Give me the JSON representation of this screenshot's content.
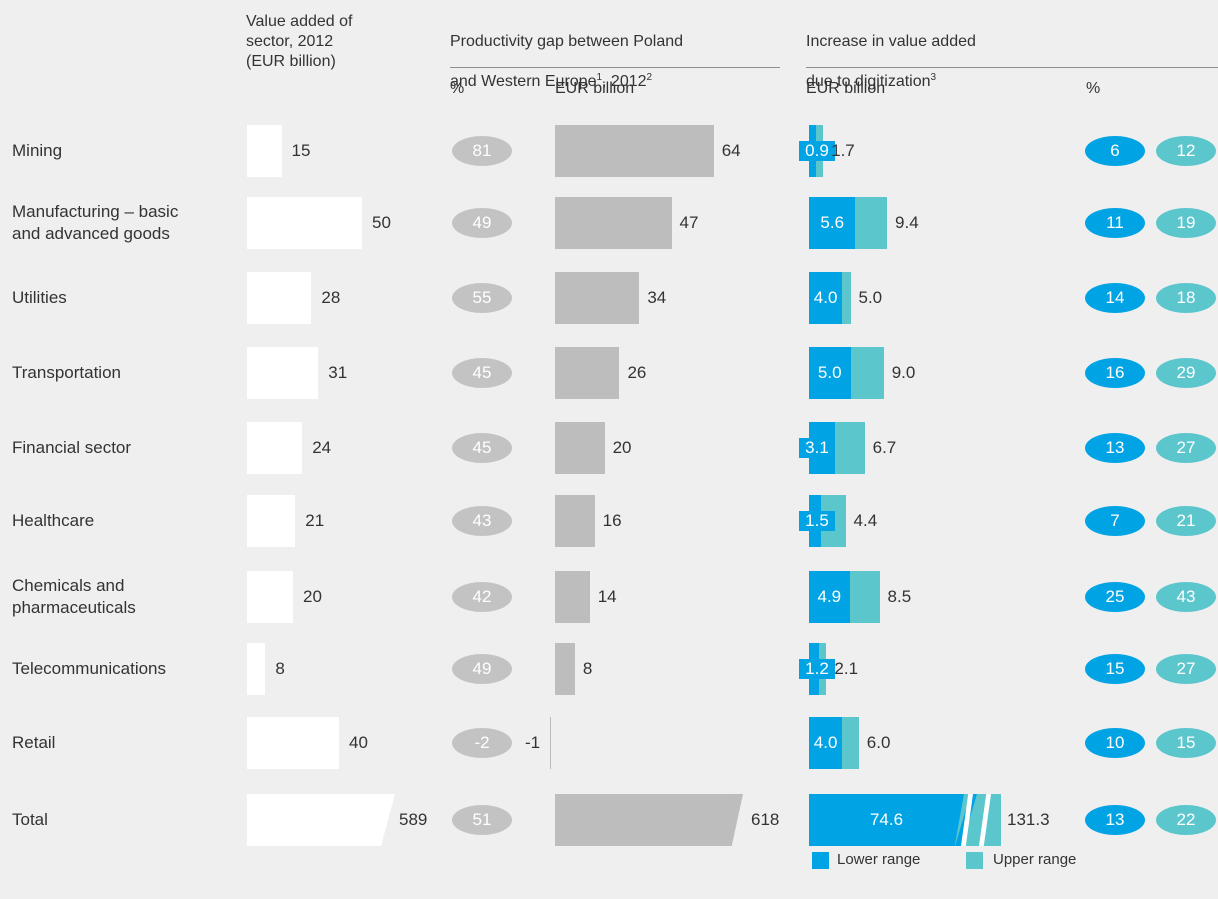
{
  "colors": {
    "background": "#efefef",
    "value_bar": "#ffffff",
    "gap_bar": "#bdbdbd",
    "gap_pill": "#c3c3c3",
    "lower": "#00a4e4",
    "upper": "#5cc6cd"
  },
  "headers": {
    "value_added": "Value added of\nsector, 2012\n(EUR billion)",
    "gap_line1": "Productivity gap between Poland",
    "gap_line2_text": "and Western Europe",
    "gap_sup1": "1",
    "gap_mid": ", 2012",
    "gap_sup2": "2",
    "increase_line1": "Increase in value added",
    "increase_line2_text": "due to digitization",
    "increase_sup": "3",
    "gap_pct": "%",
    "gap_eur": "EUR billion",
    "inc_eur": "EUR billion",
    "inc_pct": "%"
  },
  "legend": {
    "lower": "Lower range",
    "upper": "Upper range"
  },
  "chart_data": {
    "type": "bar",
    "categories": [
      "Mining",
      "Manufacturing – basic\nand advanced goods",
      "Utilities",
      "Transportation",
      "Financial sector",
      "Healthcare",
      "Chemicals and\npharmaceuticals",
      "Telecommunications",
      "Retail",
      "Total"
    ],
    "series": [
      {
        "name": "Value added of sector, 2012 (EUR billion)",
        "values": [
          15,
          50,
          28,
          31,
          24,
          21,
          20,
          8,
          40,
          589
        ]
      },
      {
        "name": "Productivity gap %",
        "values": [
          81,
          49,
          55,
          45,
          45,
          43,
          42,
          49,
          -2,
          51
        ]
      },
      {
        "name": "Productivity gap EUR billion",
        "values": [
          64,
          47,
          34,
          26,
          20,
          16,
          14,
          8,
          -1,
          618
        ]
      },
      {
        "name": "Lower range",
        "values": [
          0.9,
          5.6,
          4.0,
          5.0,
          3.1,
          1.5,
          4.9,
          1.2,
          4.0,
          74.6
        ]
      },
      {
        "name": "Upper range",
        "values": [
          1.7,
          9.4,
          5.0,
          9.0,
          6.7,
          4.4,
          8.5,
          2.1,
          6.0,
          131.3
        ]
      },
      {
        "name": "Lower range %",
        "values": [
          6,
          11,
          14,
          16,
          13,
          7,
          25,
          15,
          10,
          13
        ]
      },
      {
        "name": "Upper range %",
        "values": [
          12,
          19,
          18,
          29,
          27,
          21,
          43,
          27,
          15,
          22
        ]
      }
    ],
    "value_labels": {
      "value_added": [
        "15",
        "50",
        "28",
        "31",
        "24",
        "21",
        "20",
        "8",
        "40",
        "589"
      ],
      "gap_pct": [
        "81",
        "49",
        "55",
        "45",
        "45",
        "43",
        "42",
        "49",
        "-2",
        "51"
      ],
      "gap_eur": [
        "64",
        "47",
        "34",
        "26",
        "20",
        "16",
        "14",
        "8",
        "-1",
        "618"
      ],
      "lower": [
        "0.9",
        "5.6",
        "4.0",
        "5.0",
        "3.1",
        "1.5",
        "4.9",
        "1.2",
        "4.0",
        "74.6"
      ],
      "upper": [
        "1.7",
        "9.4",
        "5.0",
        "9.0",
        "6.7",
        "4.4",
        "8.5",
        "2.1",
        "6.0",
        "131.3"
      ],
      "pct_lower": [
        "6",
        "11",
        "14",
        "16",
        "13",
        "7",
        "25",
        "15",
        "10",
        "13"
      ],
      "pct_upper": [
        "12",
        "19",
        "18",
        "29",
        "27",
        "21",
        "43",
        "27",
        "15",
        "22"
      ]
    },
    "axis_breaks": [
      "Total"
    ]
  }
}
